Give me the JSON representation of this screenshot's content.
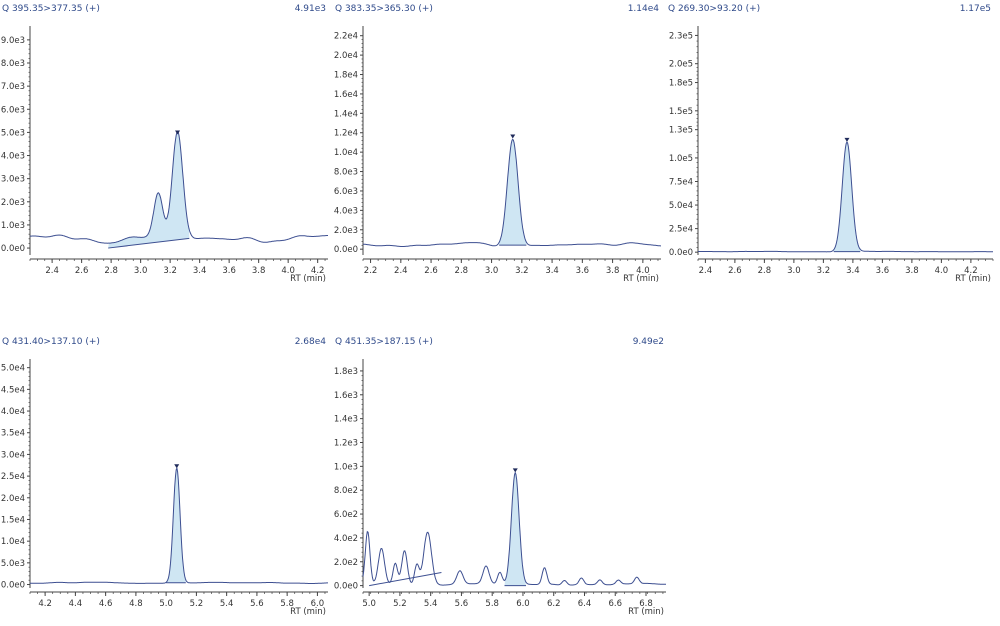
{
  "colors": {
    "trace": "#3d4f91",
    "peak_fill": "#cfe6f3",
    "peak_edge": "#3d4f91",
    "marker": "#1f2a5a",
    "axis": "#444444",
    "label": "#2f4a8a"
  },
  "chart_data": [
    {
      "type": "line",
      "title": "Q 395.35>377.35 (+)",
      "intensity_label": "4.91e3",
      "xlabel": "RT (min)",
      "xlim": [
        2.25,
        4.27
      ],
      "ylim": [
        -300,
        9600
      ],
      "x_ticks": [
        "2.4",
        "2.6",
        "2.8",
        "3.0",
        "3.2",
        "3.4",
        "3.6",
        "3.8",
        "4.0",
        "4.2"
      ],
      "y_ticks": [
        "0.0e0",
        "1.0e3",
        "2.0e3",
        "3.0e3",
        "4.0e3",
        "5.0e3",
        "6.0e3",
        "7.0e3",
        "8.0e3",
        "9.0e3"
      ],
      "peak": {
        "rt": 3.25,
        "height": 4910,
        "width": 0.035,
        "start": 2.78,
        "end": 3.33,
        "baseline_start": 0,
        "baseline_end": 420
      },
      "extra_peaks": [
        {
          "rt": 3.12,
          "height": 1900,
          "width": 0.03
        }
      ],
      "noise": {
        "base": 420,
        "amp": 230,
        "seed": 3
      }
    },
    {
      "type": "line",
      "title": "Q 383.35>365.30 (+)",
      "intensity_label": "1.14e4",
      "xlabel": "RT (min)",
      "xlim": [
        2.15,
        4.12
      ],
      "ylim": [
        -600,
        23000
      ],
      "x_ticks": [
        "2.2",
        "2.4",
        "2.6",
        "2.8",
        "3.0",
        "3.2",
        "3.4",
        "3.6",
        "3.8",
        "4.0"
      ],
      "y_ticks": [
        "0.0e0",
        "2.0e3",
        "4.0e3",
        "6.0e3",
        "8.0e3",
        "1.0e4",
        "1.2e4",
        "1.4e4",
        "1.6e4",
        "1.8e4",
        "2.0e4",
        "2.2e4"
      ],
      "peak": {
        "rt": 3.14,
        "height": 11400,
        "width": 0.035,
        "start": 3.05,
        "end": 3.23,
        "baseline_start": 420,
        "baseline_end": 420
      },
      "extra_peaks": [],
      "noise": {
        "base": 450,
        "amp": 280,
        "seed": 7
      }
    },
    {
      "type": "line",
      "title": "Q 269.30>93.20 (+)",
      "intensity_label": "1.17e5",
      "xlabel": "RT (min)",
      "xlim": [
        2.35,
        4.35
      ],
      "ylim": [
        -3000,
        240000
      ],
      "x_ticks": [
        "2.4",
        "2.6",
        "2.8",
        "3.0",
        "3.2",
        "3.4",
        "3.6",
        "3.8",
        "4.0",
        "4.2"
      ],
      "y_ticks": [
        "0.0e0",
        "2.5e4",
        "5.0e4",
        "7.5e4",
        "1.0e5",
        "1.3e5",
        "1.5e5",
        "1.8e5",
        "2.0e5",
        "2.3e5"
      ],
      "peak": {
        "rt": 3.36,
        "height": 117000,
        "width": 0.032,
        "start": 3.27,
        "end": 3.45,
        "baseline_start": 600,
        "baseline_end": 600
      },
      "extra_peaks": [],
      "noise": {
        "base": 600,
        "amp": 400,
        "seed": 11
      }
    },
    {
      "type": "line",
      "title": "Q 431.40>137.10 (+)",
      "intensity_label": "2.68e4",
      "xlabel": "RT (min)",
      "xlim": [
        4.1,
        6.07
      ],
      "ylim": [
        -800,
        52000
      ],
      "x_ticks": [
        "4.2",
        "4.4",
        "4.6",
        "4.8",
        "5.0",
        "5.2",
        "5.4",
        "5.6",
        "5.8",
        "6.0"
      ],
      "y_ticks": [
        "0.0e0",
        "5.0e3",
        "1.0e4",
        "1.5e4",
        "2.0e4",
        "2.5e4",
        "3.0e4",
        "3.5e4",
        "4.0e4",
        "4.5e4",
        "5.0e4"
      ],
      "peak": {
        "rt": 5.07,
        "height": 26800,
        "width": 0.022,
        "start": 5.0,
        "end": 5.13,
        "baseline_start": 400,
        "baseline_end": 400
      },
      "extra_peaks": [],
      "noise": {
        "base": 400,
        "amp": 200,
        "seed": 5
      }
    },
    {
      "type": "line",
      "title": "Q 451.35>187.15 (+)",
      "intensity_label": "9.49e2",
      "xlabel": "RT (min)",
      "xlim": [
        4.96,
        6.93
      ],
      "ylim": [
        -20,
        1900
      ],
      "x_ticks": [
        "5.0",
        "5.2",
        "5.4",
        "5.6",
        "5.8",
        "6.0",
        "6.2",
        "6.4",
        "6.6",
        "6.8"
      ],
      "y_ticks": [
        "0.0e0",
        "2.0e2",
        "4.0e2",
        "6.0e2",
        "8.0e2",
        "1.0e3",
        "1.2e3",
        "1.4e3",
        "1.6e3",
        "1.8e3"
      ],
      "peak": {
        "rt": 5.95,
        "height": 949,
        "width": 0.025,
        "start": 5.88,
        "end": 6.02,
        "baseline_start": 0,
        "baseline_end": 0
      },
      "extra_peaks": [
        {
          "rt": 4.99,
          "height": 440,
          "width": 0.015
        },
        {
          "rt": 5.08,
          "height": 300,
          "width": 0.02
        },
        {
          "rt": 5.17,
          "height": 180,
          "width": 0.015
        },
        {
          "rt": 5.23,
          "height": 290,
          "width": 0.018
        },
        {
          "rt": 5.31,
          "height": 170,
          "width": 0.015
        },
        {
          "rt": 5.38,
          "height": 440,
          "width": 0.025
        },
        {
          "rt": 5.59,
          "height": 110,
          "width": 0.02
        },
        {
          "rt": 5.76,
          "height": 150,
          "width": 0.02
        },
        {
          "rt": 5.85,
          "height": 100,
          "width": 0.015
        },
        {
          "rt": 6.14,
          "height": 140,
          "width": 0.015
        },
        {
          "rt": 6.27,
          "height": 40,
          "width": 0.015
        },
        {
          "rt": 6.38,
          "height": 55,
          "width": 0.015
        },
        {
          "rt": 6.5,
          "height": 40,
          "width": 0.015
        },
        {
          "rt": 6.62,
          "height": 35,
          "width": 0.015
        },
        {
          "rt": 6.74,
          "height": 55,
          "width": 0.015
        }
      ],
      "secondary_baseline": {
        "x1": 5.0,
        "y1": 0,
        "x2": 5.47,
        "y2": 110
      },
      "noise": {
        "base": 10,
        "amp": 10,
        "seed": 2
      }
    }
  ]
}
